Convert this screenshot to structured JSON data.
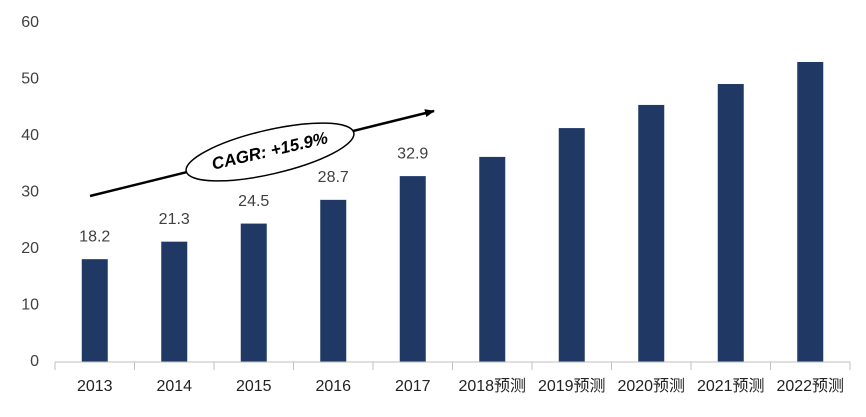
{
  "chart_data": {
    "type": "bar",
    "categories": [
      "2013",
      "2014",
      "2015",
      "2016",
      "2017",
      "2018预测",
      "2019预测",
      "2020预测",
      "2021预测",
      "2022预测"
    ],
    "values": [
      18.2,
      21.3,
      24.5,
      28.7,
      32.9,
      36.3,
      41.4,
      45.5,
      49.2,
      53.1
    ],
    "value_labels": [
      "18.2",
      "21.3",
      "24.5",
      "28.7",
      "32.9",
      null,
      null,
      null,
      null,
      null
    ],
    "color": "#1f3864",
    "ylim": [
      0,
      60
    ],
    "yticks": [
      0,
      10,
      20,
      30,
      40,
      50,
      60
    ],
    "grid": false,
    "annotation": "CAGR: +15.9%"
  }
}
